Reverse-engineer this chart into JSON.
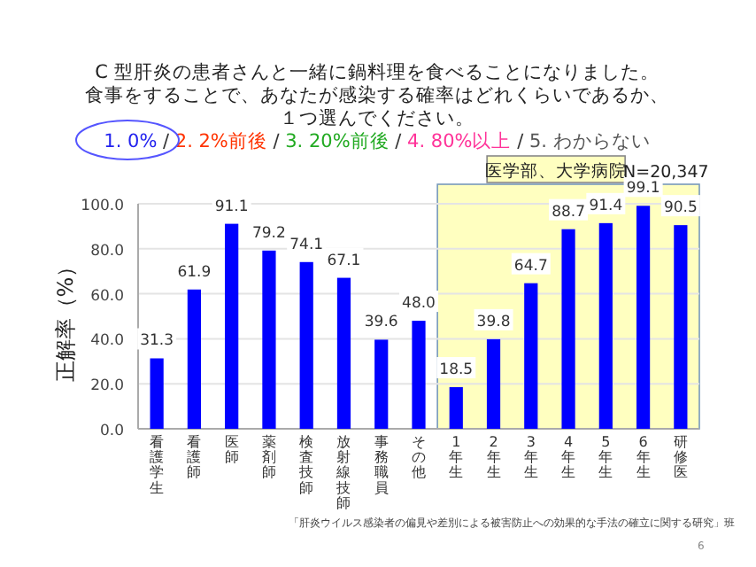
{
  "chart_data": {
    "type": "bar",
    "title": "C 型肝炎の患者さんと一緒に鍋料理を食べることになりました。食事をすることで、あなたが感染する確率はどれくらいであるか、１つ選んでください。",
    "subtitle": "1. 0% / 2. 2%前後 / 3. 20%前後 / 4. 80%以上 / 5. わからない",
    "ylabel": "正解率（%）",
    "categories": [
      "看護学生",
      "看護師",
      "医師",
      "薬剤師",
      "検査技師",
      "放射線技師",
      "事務職員",
      "その他",
      "1年生",
      "2年生",
      "3年生",
      "4年生",
      "5年生",
      "6年生",
      "研修医"
    ],
    "values": [
      31.3,
      61.9,
      91.1,
      79.2,
      74.1,
      67.1,
      39.6,
      48.0,
      18.5,
      39.8,
      64.7,
      88.7,
      91.4,
      99.1,
      90.5
    ],
    "value_labels": [
      "31.3",
      "61.9",
      "91.1",
      "79.2",
      "74.1",
      "67.1",
      "39.6",
      "48.0",
      "18.5",
      "39.8",
      "64.7",
      "88.7",
      "91.4",
      "99.1",
      "90.5"
    ],
    "color": "#0000ff",
    "ylim": [
      0,
      100
    ],
    "yticks": [
      {
        "value": 0,
        "label": "0.0"
      },
      {
        "value": 20,
        "label": "20.0"
      },
      {
        "value": 40,
        "label": "40.0"
      },
      {
        "value": 60,
        "label": "60.0"
      },
      {
        "value": 80,
        "label": "80.0"
      },
      {
        "value": 100,
        "label": "100.0"
      }
    ],
    "grid": "y",
    "bands": [
      {
        "axis": "x",
        "from": "1年生",
        "to": "研修医",
        "label": "医学部、大学病院",
        "color": "#ffffc0"
      }
    ],
    "annotations": [
      "N=20,347",
      "「肝炎ウイルス感染者の偏見や差別による被害防止への効果的な手法の確立に関する研究」班",
      "6"
    ]
  }
}
